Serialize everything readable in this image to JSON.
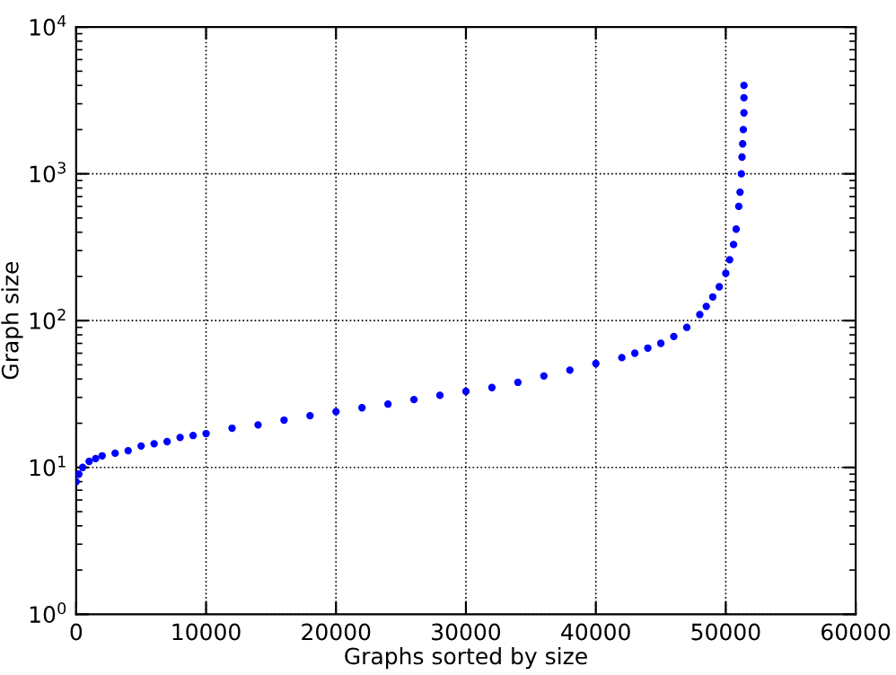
{
  "chart_data": {
    "type": "scatter",
    "xlabel": "Graphs sorted by size",
    "ylabel": "Graph size",
    "log": "y",
    "grid": true,
    "marker": "circle",
    "xlim": [
      0,
      60000
    ],
    "xticks": [
      0,
      10000,
      20000,
      30000,
      40000,
      50000,
      60000
    ],
    "ylim": [
      1,
      10000
    ],
    "yticks": [
      {
        "value": 1,
        "label": "10$^{0}$"
      },
      {
        "value": 10,
        "label": "10$^{1}$"
      },
      {
        "value": 100,
        "label": "10$^{2}$"
      },
      {
        "value": 1000,
        "label": "10$^{3}$"
      },
      {
        "value": 10000,
        "label": "10$^{4}$"
      }
    ],
    "series": [
      {
        "color": "#0000ff",
        "x": [
          0,
          200,
          500,
          1000,
          1500,
          2000,
          3000,
          4000,
          5000,
          6000,
          7000,
          8000,
          9000,
          10000,
          12000,
          14000,
          16000,
          18000,
          20000,
          22000,
          24000,
          26000,
          28000,
          30000,
          32000,
          34000,
          36000,
          38000,
          40000,
          42000,
          43000,
          44000,
          45000,
          46000,
          47000,
          48000,
          48500,
          49000,
          49500,
          50000,
          50300,
          50600,
          50800,
          51000,
          51100,
          51200,
          51250,
          51300,
          51350,
          51400,
          51400,
          51400
        ],
        "values": [
          8,
          9,
          10,
          11,
          11.5,
          12,
          12.5,
          13,
          14,
          14.5,
          15,
          16,
          16.5,
          17,
          18.5,
          19.5,
          21,
          22.5,
          24,
          25.5,
          27,
          29,
          31,
          33,
          35,
          38,
          42,
          46,
          51,
          56,
          60,
          65,
          70,
          78,
          90,
          110,
          125,
          145,
          170,
          210,
          260,
          330,
          420,
          600,
          750,
          1000,
          1300,
          1600,
          2000,
          2600,
          3300,
          4000
        ]
      }
    ]
  }
}
